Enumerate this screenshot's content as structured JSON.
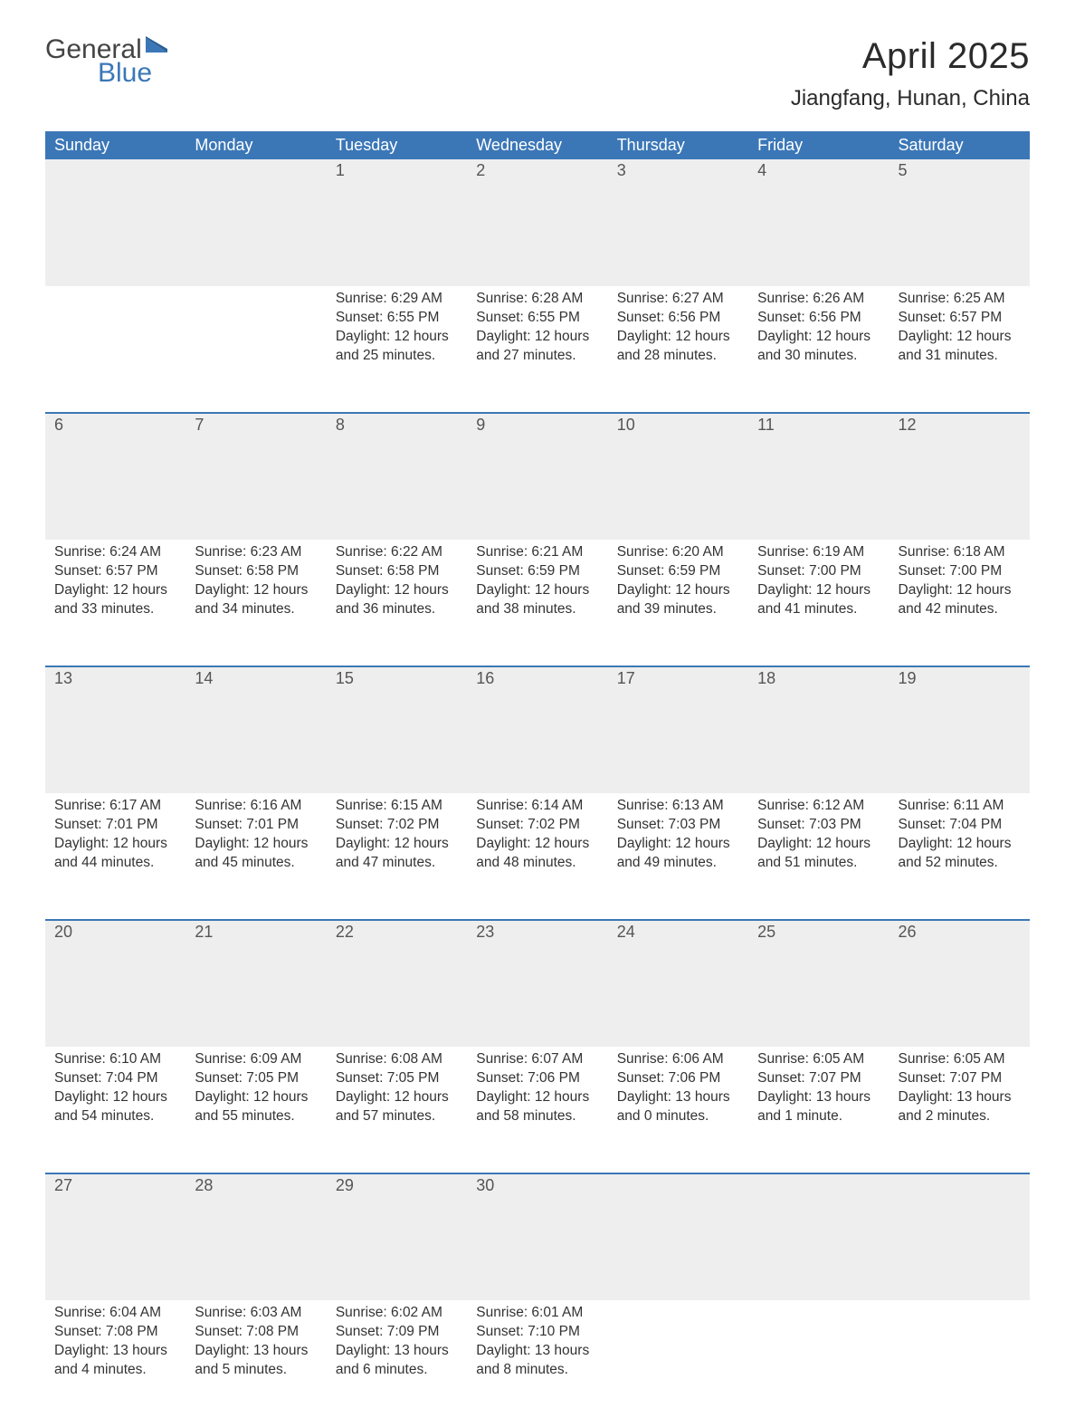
{
  "brand": {
    "word1": "General",
    "word2": "Blue"
  },
  "title": "April 2025",
  "location": "Jiangfang, Hunan, China",
  "colors": {
    "header_bg": "#3b77b7",
    "header_text": "#ffffff",
    "daynum_bg": "#eeeeee",
    "rule": "#3b77b7",
    "body_bg": "#ffffff",
    "text": "#333333"
  },
  "weekdays": [
    "Sunday",
    "Monday",
    "Tuesday",
    "Wednesday",
    "Thursday",
    "Friday",
    "Saturday"
  ],
  "weeks": [
    [
      {
        "day": "",
        "sunrise": "",
        "sunset": "",
        "daylight": ""
      },
      {
        "day": "",
        "sunrise": "",
        "sunset": "",
        "daylight": ""
      },
      {
        "day": "1",
        "sunrise": "Sunrise: 6:29 AM",
        "sunset": "Sunset: 6:55 PM",
        "daylight": "Daylight: 12 hours and 25 minutes."
      },
      {
        "day": "2",
        "sunrise": "Sunrise: 6:28 AM",
        "sunset": "Sunset: 6:55 PM",
        "daylight": "Daylight: 12 hours and 27 minutes."
      },
      {
        "day": "3",
        "sunrise": "Sunrise: 6:27 AM",
        "sunset": "Sunset: 6:56 PM",
        "daylight": "Daylight: 12 hours and 28 minutes."
      },
      {
        "day": "4",
        "sunrise": "Sunrise: 6:26 AM",
        "sunset": "Sunset: 6:56 PM",
        "daylight": "Daylight: 12 hours and 30 minutes."
      },
      {
        "day": "5",
        "sunrise": "Sunrise: 6:25 AM",
        "sunset": "Sunset: 6:57 PM",
        "daylight": "Daylight: 12 hours and 31 minutes."
      }
    ],
    [
      {
        "day": "6",
        "sunrise": "Sunrise: 6:24 AM",
        "sunset": "Sunset: 6:57 PM",
        "daylight": "Daylight: 12 hours and 33 minutes."
      },
      {
        "day": "7",
        "sunrise": "Sunrise: 6:23 AM",
        "sunset": "Sunset: 6:58 PM",
        "daylight": "Daylight: 12 hours and 34 minutes."
      },
      {
        "day": "8",
        "sunrise": "Sunrise: 6:22 AM",
        "sunset": "Sunset: 6:58 PM",
        "daylight": "Daylight: 12 hours and 36 minutes."
      },
      {
        "day": "9",
        "sunrise": "Sunrise: 6:21 AM",
        "sunset": "Sunset: 6:59 PM",
        "daylight": "Daylight: 12 hours and 38 minutes."
      },
      {
        "day": "10",
        "sunrise": "Sunrise: 6:20 AM",
        "sunset": "Sunset: 6:59 PM",
        "daylight": "Daylight: 12 hours and 39 minutes."
      },
      {
        "day": "11",
        "sunrise": "Sunrise: 6:19 AM",
        "sunset": "Sunset: 7:00 PM",
        "daylight": "Daylight: 12 hours and 41 minutes."
      },
      {
        "day": "12",
        "sunrise": "Sunrise: 6:18 AM",
        "sunset": "Sunset: 7:00 PM",
        "daylight": "Daylight: 12 hours and 42 minutes."
      }
    ],
    [
      {
        "day": "13",
        "sunrise": "Sunrise: 6:17 AM",
        "sunset": "Sunset: 7:01 PM",
        "daylight": "Daylight: 12 hours and 44 minutes."
      },
      {
        "day": "14",
        "sunrise": "Sunrise: 6:16 AM",
        "sunset": "Sunset: 7:01 PM",
        "daylight": "Daylight: 12 hours and 45 minutes."
      },
      {
        "day": "15",
        "sunrise": "Sunrise: 6:15 AM",
        "sunset": "Sunset: 7:02 PM",
        "daylight": "Daylight: 12 hours and 47 minutes."
      },
      {
        "day": "16",
        "sunrise": "Sunrise: 6:14 AM",
        "sunset": "Sunset: 7:02 PM",
        "daylight": "Daylight: 12 hours and 48 minutes."
      },
      {
        "day": "17",
        "sunrise": "Sunrise: 6:13 AM",
        "sunset": "Sunset: 7:03 PM",
        "daylight": "Daylight: 12 hours and 49 minutes."
      },
      {
        "day": "18",
        "sunrise": "Sunrise: 6:12 AM",
        "sunset": "Sunset: 7:03 PM",
        "daylight": "Daylight: 12 hours and 51 minutes."
      },
      {
        "day": "19",
        "sunrise": "Sunrise: 6:11 AM",
        "sunset": "Sunset: 7:04 PM",
        "daylight": "Daylight: 12 hours and 52 minutes."
      }
    ],
    [
      {
        "day": "20",
        "sunrise": "Sunrise: 6:10 AM",
        "sunset": "Sunset: 7:04 PM",
        "daylight": "Daylight: 12 hours and 54 minutes."
      },
      {
        "day": "21",
        "sunrise": "Sunrise: 6:09 AM",
        "sunset": "Sunset: 7:05 PM",
        "daylight": "Daylight: 12 hours and 55 minutes."
      },
      {
        "day": "22",
        "sunrise": "Sunrise: 6:08 AM",
        "sunset": "Sunset: 7:05 PM",
        "daylight": "Daylight: 12 hours and 57 minutes."
      },
      {
        "day": "23",
        "sunrise": "Sunrise: 6:07 AM",
        "sunset": "Sunset: 7:06 PM",
        "daylight": "Daylight: 12 hours and 58 minutes."
      },
      {
        "day": "24",
        "sunrise": "Sunrise: 6:06 AM",
        "sunset": "Sunset: 7:06 PM",
        "daylight": "Daylight: 13 hours and 0 minutes."
      },
      {
        "day": "25",
        "sunrise": "Sunrise: 6:05 AM",
        "sunset": "Sunset: 7:07 PM",
        "daylight": "Daylight: 13 hours and 1 minute."
      },
      {
        "day": "26",
        "sunrise": "Sunrise: 6:05 AM",
        "sunset": "Sunset: 7:07 PM",
        "daylight": "Daylight: 13 hours and 2 minutes."
      }
    ],
    [
      {
        "day": "27",
        "sunrise": "Sunrise: 6:04 AM",
        "sunset": "Sunset: 7:08 PM",
        "daylight": "Daylight: 13 hours and 4 minutes."
      },
      {
        "day": "28",
        "sunrise": "Sunrise: 6:03 AM",
        "sunset": "Sunset: 7:08 PM",
        "daylight": "Daylight: 13 hours and 5 minutes."
      },
      {
        "day": "29",
        "sunrise": "Sunrise: 6:02 AM",
        "sunset": "Sunset: 7:09 PM",
        "daylight": "Daylight: 13 hours and 6 minutes."
      },
      {
        "day": "30",
        "sunrise": "Sunrise: 6:01 AM",
        "sunset": "Sunset: 7:10 PM",
        "daylight": "Daylight: 13 hours and 8 minutes."
      },
      {
        "day": "",
        "sunrise": "",
        "sunset": "",
        "daylight": ""
      },
      {
        "day": "",
        "sunrise": "",
        "sunset": "",
        "daylight": ""
      },
      {
        "day": "",
        "sunrise": "",
        "sunset": "",
        "daylight": ""
      }
    ]
  ]
}
